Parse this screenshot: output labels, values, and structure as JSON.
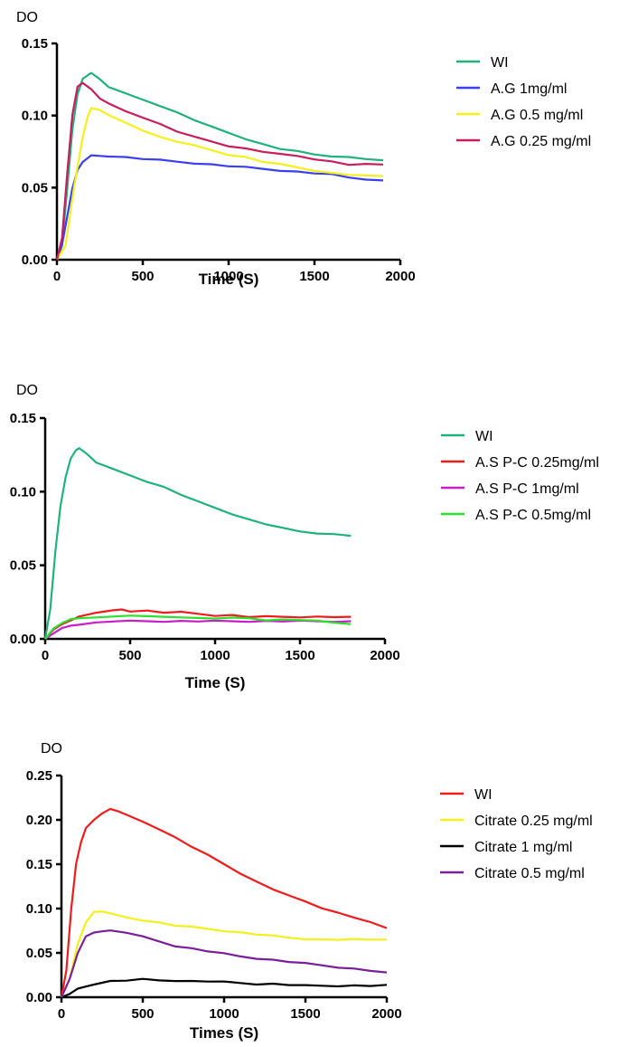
{
  "chart_data": [
    {
      "type": "line",
      "ylabel": "DO",
      "xlabel": "Time (S)",
      "xlim": [
        0,
        2000
      ],
      "ylim": [
        0,
        0.15
      ],
      "xticks": [
        0,
        500,
        1000,
        1500,
        2000
      ],
      "yticks": [
        0,
        0.05,
        0.1,
        0.15
      ],
      "xtick_labels": [
        "0",
        "500",
        "1000",
        "1500",
        "2000"
      ],
      "ytick_labels": [
        "0.00",
        "0.05",
        "0.10",
        "0.15"
      ],
      "grid": false,
      "legend_position": "right",
      "series": [
        {
          "name": "WI",
          "color": "#1fb27a",
          "x": [
            0,
            30,
            60,
            90,
            120,
            150,
            180,
            200,
            250,
            300,
            400,
            500,
            600,
            700,
            800,
            900,
            1000,
            1100,
            1200,
            1300,
            1400,
            1500,
            1600,
            1700,
            1800,
            1900
          ],
          "y": [
            0,
            0.01,
            0.05,
            0.09,
            0.115,
            0.125,
            0.128,
            0.13,
            0.125,
            0.12,
            0.115,
            0.111,
            0.107,
            0.102,
            0.097,
            0.092,
            0.088,
            0.084,
            0.08,
            0.077,
            0.075,
            0.073,
            0.072,
            0.071,
            0.07,
            0.069
          ]
        },
        {
          "name": "A.G 1mg/ml",
          "color": "#3a3ff0",
          "x": [
            0,
            30,
            60,
            90,
            120,
            150,
            200,
            250,
            300,
            400,
            500,
            600,
            700,
            800,
            900,
            1000,
            1100,
            1200,
            1300,
            1400,
            1500,
            1600,
            1700,
            1800,
            1900
          ],
          "y": [
            0,
            0.01,
            0.03,
            0.05,
            0.062,
            0.068,
            0.072,
            0.072,
            0.072,
            0.071,
            0.07,
            0.069,
            0.068,
            0.067,
            0.066,
            0.065,
            0.064,
            0.063,
            0.062,
            0.061,
            0.06,
            0.059,
            0.057,
            0.056,
            0.055
          ]
        },
        {
          "name": "A.G 0.5 mg/ml",
          "color": "#f4f01c",
          "x": [
            0,
            50,
            100,
            150,
            180,
            200,
            250,
            300,
            400,
            500,
            600,
            700,
            800,
            900,
            1000,
            1100,
            1200,
            1300,
            1400,
            1500,
            1600,
            1700,
            1800,
            1900
          ],
          "y": [
            0,
            0.01,
            0.05,
            0.085,
            0.1,
            0.105,
            0.104,
            0.1,
            0.095,
            0.09,
            0.085,
            0.082,
            0.079,
            0.076,
            0.073,
            0.071,
            0.068,
            0.066,
            0.064,
            0.062,
            0.06,
            0.059,
            0.058,
            0.058
          ]
        },
        {
          "name": "A.G 0.25 mg/ml",
          "color": "#c81e5c",
          "x": [
            0,
            30,
            60,
            90,
            120,
            150,
            200,
            250,
            300,
            400,
            500,
            600,
            700,
            800,
            900,
            1000,
            1100,
            1200,
            1300,
            1400,
            1500,
            1600,
            1700,
            1800,
            1900
          ],
          "y": [
            0,
            0.015,
            0.06,
            0.1,
            0.12,
            0.123,
            0.118,
            0.112,
            0.108,
            0.103,
            0.099,
            0.094,
            0.089,
            0.085,
            0.082,
            0.079,
            0.077,
            0.075,
            0.073,
            0.072,
            0.07,
            0.068,
            0.066,
            0.066,
            0.066
          ]
        }
      ]
    },
    {
      "type": "line",
      "ylabel": "DO",
      "xlabel": "Time (S)",
      "xlim": [
        0,
        2000
      ],
      "ylim": [
        0,
        0.15
      ],
      "xticks": [
        0,
        500,
        1000,
        1500,
        2000
      ],
      "yticks": [
        0,
        0.05,
        0.1,
        0.15
      ],
      "xtick_labels": [
        "0",
        "500",
        "1000",
        "1500",
        "2000"
      ],
      "ytick_labels": [
        "0.00",
        "0.05",
        "0.10",
        "0.15"
      ],
      "grid": false,
      "legend_position": "right",
      "series": [
        {
          "name": "WI",
          "color": "#1fb27a",
          "x": [
            0,
            30,
            60,
            90,
            120,
            150,
            180,
            200,
            250,
            300,
            400,
            500,
            600,
            700,
            800,
            900,
            1000,
            1100,
            1200,
            1300,
            1400,
            1500,
            1600,
            1700,
            1800
          ],
          "y": [
            0,
            0.02,
            0.06,
            0.09,
            0.11,
            0.122,
            0.128,
            0.13,
            0.125,
            0.12,
            0.115,
            0.111,
            0.107,
            0.103,
            0.098,
            0.093,
            0.089,
            0.085,
            0.081,
            0.078,
            0.075,
            0.073,
            0.072,
            0.071,
            0.07
          ]
        },
        {
          "name": "A.S P-C 0.25mg/ml",
          "color": "#ee1c1c",
          "x": [
            0,
            50,
            100,
            150,
            200,
            300,
            400,
            450,
            500,
            600,
            700,
            800,
            900,
            1000,
            1100,
            1200,
            1300,
            1400,
            1500,
            1600,
            1700,
            1800
          ],
          "y": [
            0,
            0.006,
            0.01,
            0.013,
            0.015,
            0.018,
            0.019,
            0.02,
            0.019,
            0.019,
            0.018,
            0.018,
            0.017,
            0.016,
            0.016,
            0.015,
            0.015,
            0.015,
            0.015,
            0.015,
            0.015,
            0.015
          ]
        },
        {
          "name": "A.S P-C 1mg/ml",
          "color": "#c81ec8",
          "x": [
            0,
            50,
            100,
            150,
            200,
            300,
            400,
            500,
            600,
            700,
            800,
            900,
            1000,
            1100,
            1200,
            1300,
            1400,
            1500,
            1600,
            1700,
            1800
          ],
          "y": [
            0,
            0.004,
            0.007,
            0.009,
            0.01,
            0.011,
            0.012,
            0.012,
            0.012,
            0.012,
            0.012,
            0.012,
            0.012,
            0.012,
            0.012,
            0.012,
            0.012,
            0.012,
            0.012,
            0.012,
            0.012
          ]
        },
        {
          "name": "A.S P-C 0.5mg/ml",
          "color": "#2ee02e",
          "x": [
            0,
            50,
            100,
            150,
            200,
            300,
            400,
            500,
            600,
            700,
            800,
            900,
            1000,
            1100,
            1200,
            1300,
            1400,
            1500,
            1600,
            1700,
            1800
          ],
          "y": [
            0,
            0.007,
            0.011,
            0.013,
            0.014,
            0.015,
            0.015,
            0.016,
            0.015,
            0.015,
            0.015,
            0.014,
            0.014,
            0.014,
            0.014,
            0.013,
            0.013,
            0.013,
            0.012,
            0.011,
            0.01
          ]
        }
      ]
    },
    {
      "type": "line",
      "ylabel": "DO",
      "xlabel": "Times (S)",
      "xlim": [
        0,
        2000
      ],
      "ylim": [
        0,
        0.25
      ],
      "xticks": [
        0,
        500,
        1000,
        1500,
        2000
      ],
      "yticks": [
        0,
        0.05,
        0.1,
        0.15,
        0.2,
        0.25
      ],
      "xtick_labels": [
        "0",
        "500",
        "1000",
        "1500",
        "2000"
      ],
      "ytick_labels": [
        "0.00",
        "0.05",
        "0.10",
        "0.15",
        "0.20",
        "0.25"
      ],
      "grid": false,
      "legend_position": "right",
      "series": [
        {
          "name": "WI",
          "color": "#ee1c1c",
          "x": [
            0,
            30,
            60,
            90,
            120,
            150,
            200,
            250,
            300,
            350,
            400,
            500,
            600,
            700,
            800,
            900,
            1000,
            1100,
            1200,
            1300,
            1400,
            1500,
            1600,
            1700,
            1800,
            1900,
            2000
          ],
          "y": [
            0,
            0.03,
            0.1,
            0.15,
            0.175,
            0.19,
            0.2,
            0.208,
            0.212,
            0.21,
            0.205,
            0.198,
            0.19,
            0.18,
            0.17,
            0.16,
            0.15,
            0.14,
            0.13,
            0.122,
            0.114,
            0.108,
            0.101,
            0.095,
            0.09,
            0.084,
            0.078
          ]
        },
        {
          "name": "Citrate 0.25 mg/ml",
          "color": "#f4f01c",
          "x": [
            0,
            50,
            100,
            150,
            200,
            250,
            300,
            400,
            500,
            600,
            700,
            800,
            900,
            1000,
            1100,
            1200,
            1300,
            1400,
            1500,
            1600,
            1700,
            1800,
            1900,
            2000
          ],
          "y": [
            0,
            0.02,
            0.06,
            0.085,
            0.096,
            0.097,
            0.094,
            0.09,
            0.087,
            0.084,
            0.081,
            0.079,
            0.077,
            0.075,
            0.073,
            0.071,
            0.069,
            0.067,
            0.066,
            0.065,
            0.065,
            0.065,
            0.065,
            0.065
          ]
        },
        {
          "name": "Citrate 1 mg/ml",
          "color": "#000000",
          "x": [
            0,
            50,
            100,
            150,
            200,
            300,
            400,
            500,
            600,
            700,
            800,
            900,
            1000,
            1100,
            1200,
            1300,
            1400,
            1500,
            1600,
            1700,
            1800,
            1900,
            2000
          ],
          "y": [
            0,
            0.004,
            0.009,
            0.012,
            0.015,
            0.018,
            0.019,
            0.02,
            0.019,
            0.019,
            0.018,
            0.018,
            0.017,
            0.016,
            0.015,
            0.015,
            0.014,
            0.013,
            0.013,
            0.013,
            0.013,
            0.013,
            0.014
          ]
        },
        {
          "name": "Citrate 0.5 mg/ml",
          "color": "#7a1e9c",
          "x": [
            0,
            50,
            100,
            150,
            200,
            250,
            300,
            400,
            500,
            600,
            700,
            800,
            900,
            1000,
            1100,
            1200,
            1300,
            1400,
            1500,
            1600,
            1700,
            1800,
            1900,
            2000
          ],
          "y": [
            0,
            0.02,
            0.05,
            0.068,
            0.073,
            0.075,
            0.075,
            0.073,
            0.068,
            0.063,
            0.058,
            0.055,
            0.052,
            0.049,
            0.046,
            0.044,
            0.042,
            0.04,
            0.038,
            0.036,
            0.034,
            0.032,
            0.03,
            0.028
          ]
        }
      ]
    }
  ]
}
